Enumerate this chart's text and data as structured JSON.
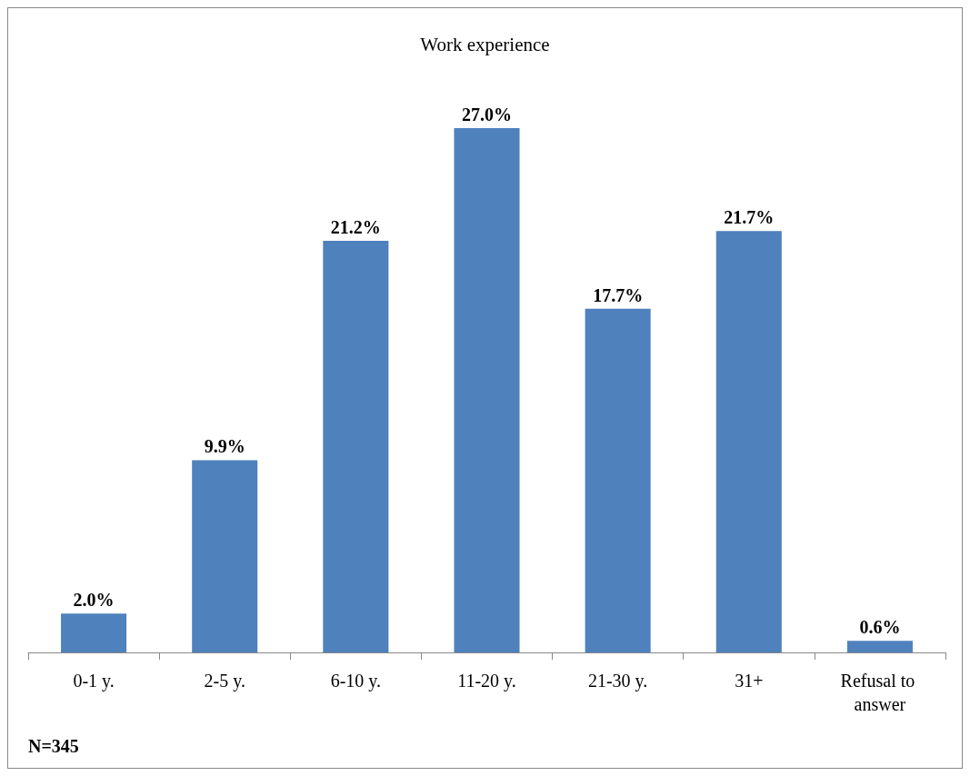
{
  "chart_data": {
    "type": "bar",
    "title": "Work experience",
    "categories": [
      "0-1 y.",
      "2-5 y.",
      "6-10 y.",
      "11-20 y.",
      "21-30 y.",
      "31+",
      "Refusal to answer"
    ],
    "values": [
      2.0,
      9.9,
      21.2,
      27.0,
      17.7,
      21.7,
      0.6
    ],
    "value_labels": [
      "2.0%",
      "9.9%",
      "21.2%",
      "27.0%",
      "17.7%",
      "21.7%",
      "0.6%"
    ],
    "color": "#4f81bd",
    "annotations": [
      "N=345"
    ]
  }
}
